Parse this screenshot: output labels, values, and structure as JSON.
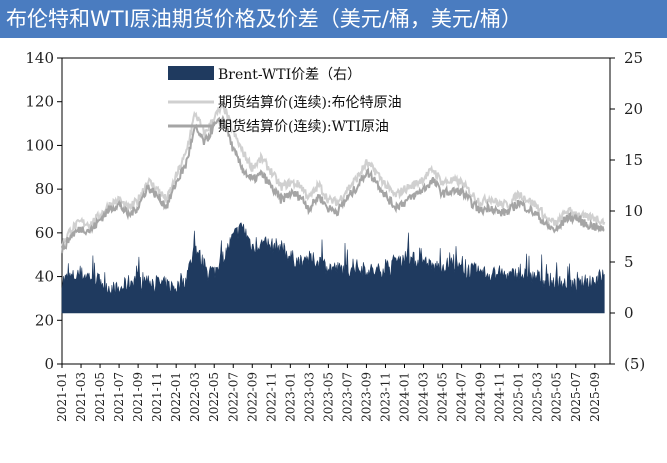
{
  "title": "布伦特和WTI原油期货价格及价差（美元/桶，美元/桶）",
  "colors": {
    "title_bg": "#4a7cc0",
    "spread": "#1f3a5f",
    "brent": "#d0d0d0",
    "wti": "#a5a5a5",
    "neg_tick": "#e00000"
  },
  "chart_data": {
    "type": "line+area",
    "title": "布伦特和WTI原油期货价格及价差（美元/桶，美元/桶）",
    "left_axis": {
      "ylim": [
        0,
        140
      ],
      "ticks": [
        "0",
        "20",
        "40",
        "60",
        "80",
        "100",
        "120",
        "140"
      ]
    },
    "right_axis": {
      "ylim": [
        -5,
        25
      ],
      "ticks": [
        "(5)",
        "0",
        "5",
        "10",
        "15",
        "20",
        "25"
      ]
    },
    "x_ticks": [
      "2021-01",
      "2021-03",
      "2021-05",
      "2021-07",
      "2021-09",
      "2021-11",
      "2022-01",
      "2022-03",
      "2022-05",
      "2022-07",
      "2022-09",
      "2022-11",
      "2023-01",
      "2023-03",
      "2023-05",
      "2023-07",
      "2023-09",
      "2023-11",
      "2024-01",
      "2024-03",
      "2024-05",
      "2024-07",
      "2024-09",
      "2024-11",
      "2025-01",
      "2025-03",
      "2025-05",
      "2025-07",
      "2025-09"
    ],
    "legend_position": "top-center",
    "series": [
      {
        "name": "Brent-WTI价差（右）",
        "kind": "area",
        "axis": "right",
        "x": [
          "2021-01",
          "2021-02",
          "2021-03",
          "2021-04",
          "2021-05",
          "2021-06",
          "2021-07",
          "2021-08",
          "2021-09",
          "2021-10",
          "2021-11",
          "2021-12",
          "2022-01",
          "2022-02",
          "2022-03",
          "2022-04",
          "2022-05",
          "2022-06",
          "2022-07",
          "2022-08",
          "2022-09",
          "2022-10",
          "2022-11",
          "2022-12",
          "2023-01",
          "2023-02",
          "2023-03",
          "2023-04",
          "2023-05",
          "2023-06",
          "2023-07",
          "2023-08",
          "2023-09",
          "2023-10",
          "2023-11",
          "2023-12",
          "2024-01",
          "2024-02",
          "2024-03",
          "2024-04",
          "2024-05",
          "2024-06",
          "2024-07",
          "2024-08",
          "2024-09",
          "2024-10",
          "2024-11",
          "2024-12",
          "2025-01",
          "2025-02",
          "2025-03",
          "2025-04",
          "2025-05",
          "2025-06",
          "2025-07",
          "2025-08",
          "2025-09",
          "2025-10"
        ],
        "values": [
          3.2,
          3.5,
          3.8,
          3.6,
          3.1,
          2.5,
          2.2,
          3.0,
          3.4,
          3.2,
          3.0,
          2.7,
          2.5,
          3.3,
          6.5,
          4.5,
          4.0,
          5.5,
          7.5,
          8.5,
          6.5,
          6.8,
          6.6,
          6.5,
          5.5,
          5.0,
          5.3,
          5.0,
          4.5,
          4.3,
          4.2,
          4.5,
          4.3,
          4.0,
          4.5,
          5.0,
          5.5,
          5.2,
          4.8,
          4.5,
          4.6,
          4.8,
          4.3,
          4.2,
          4.0,
          3.8,
          3.9,
          3.6,
          3.9,
          3.5,
          3.5,
          3.2,
          3.0,
          2.9,
          2.6,
          3.0,
          3.3,
          3.8
        ]
      },
      {
        "name": "期货结算价(连续):布伦特原油",
        "kind": "line",
        "axis": "left",
        "x": [
          "2021-01",
          "2021-02",
          "2021-03",
          "2021-04",
          "2021-05",
          "2021-06",
          "2021-07",
          "2021-08",
          "2021-09",
          "2021-10",
          "2021-11",
          "2021-12",
          "2022-01",
          "2022-02",
          "2022-03",
          "2022-04",
          "2022-05",
          "2022-06",
          "2022-07",
          "2022-08",
          "2022-09",
          "2022-10",
          "2022-11",
          "2022-12",
          "2023-01",
          "2023-02",
          "2023-03",
          "2023-04",
          "2023-05",
          "2023-06",
          "2023-07",
          "2023-08",
          "2023-09",
          "2023-10",
          "2023-11",
          "2023-12",
          "2024-01",
          "2024-02",
          "2024-03",
          "2024-04",
          "2024-05",
          "2024-06",
          "2024-07",
          "2024-08",
          "2024-09",
          "2024-10",
          "2024-11",
          "2024-12",
          "2025-01",
          "2025-02",
          "2025-03",
          "2025-04",
          "2025-05",
          "2025-06",
          "2025-07",
          "2025-08",
          "2025-09",
          "2025-10"
        ],
        "values": [
          55,
          62,
          65,
          64,
          68,
          73,
          75,
          71,
          75,
          84,
          80,
          75,
          86,
          96,
          115,
          105,
          113,
          118,
          106,
          97,
          90,
          94,
          88,
          81,
          83,
          82,
          76,
          82,
          75,
          74,
          80,
          85,
          92,
          88,
          82,
          77,
          80,
          82,
          85,
          89,
          83,
          84,
          83,
          78,
          74,
          76,
          73,
          73,
          78,
          75,
          72,
          66,
          64,
          70,
          69,
          67,
          67,
          65
        ]
      },
      {
        "name": "期货结算价(连续):WTI原油",
        "kind": "line",
        "axis": "left",
        "x": [
          "2021-01",
          "2021-02",
          "2021-03",
          "2021-04",
          "2021-05",
          "2021-06",
          "2021-07",
          "2021-08",
          "2021-09",
          "2021-10",
          "2021-11",
          "2021-12",
          "2022-01",
          "2022-02",
          "2022-03",
          "2022-04",
          "2022-05",
          "2022-06",
          "2022-07",
          "2022-08",
          "2022-09",
          "2022-10",
          "2022-11",
          "2022-12",
          "2023-01",
          "2023-02",
          "2023-03",
          "2023-04",
          "2023-05",
          "2023-06",
          "2023-07",
          "2023-08",
          "2023-09",
          "2023-10",
          "2023-11",
          "2023-12",
          "2024-01",
          "2024-02",
          "2024-03",
          "2024-04",
          "2024-05",
          "2024-06",
          "2024-07",
          "2024-08",
          "2024-09",
          "2024-10",
          "2024-11",
          "2024-12",
          "2025-01",
          "2025-02",
          "2025-03",
          "2025-04",
          "2025-05",
          "2025-06",
          "2025-07",
          "2025-08",
          "2025-09",
          "2025-10"
        ],
        "values": [
          52,
          59,
          62,
          61,
          66,
          71,
          73,
          68,
          72,
          81,
          77,
          72,
          83,
          91,
          108,
          101,
          109,
          112,
          98,
          89,
          84,
          87,
          81,
          75,
          78,
          77,
          71,
          77,
          71,
          70,
          76,
          81,
          88,
          84,
          77,
          72,
          74,
          77,
          80,
          84,
          78,
          79,
          79,
          74,
          70,
          72,
          69,
          70,
          74,
          71,
          68,
          63,
          61,
          67,
          67,
          64,
          63,
          61
        ]
      }
    ]
  }
}
